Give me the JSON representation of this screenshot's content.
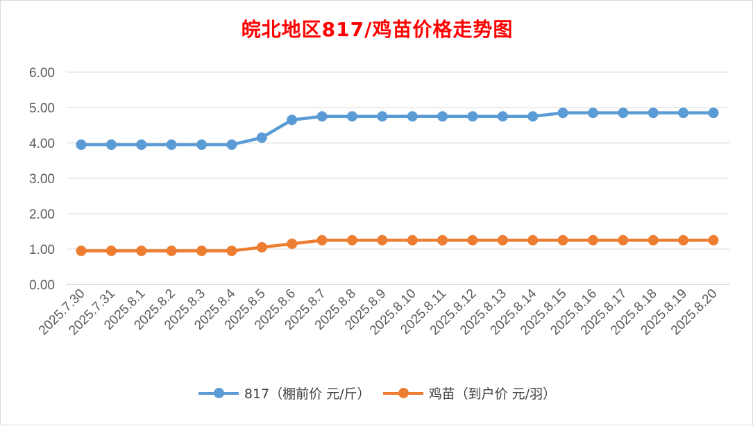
{
  "chart_data": {
    "type": "line",
    "title": "皖北地区817/鸡苗价格走势图",
    "categories": [
      "2025.7.30",
      "2025.7.31",
      "2025.8.1",
      "2025.8.2",
      "2025.8.3",
      "2025.8.4",
      "2025.8.5",
      "2025.8.6",
      "2025.8.7",
      "2025.8.8",
      "2025.8.9",
      "2025.8.10",
      "2025.8.11",
      "2025.8.12",
      "2025.8.13",
      "2025.8.14",
      "2025.8.15",
      "2025.8.16",
      "2025.8.17",
      "2025.8.18",
      "2025.8.19",
      "2025.8.20"
    ],
    "y_ticks": [
      "0.00",
      "1.00",
      "2.00",
      "3.00",
      "4.00",
      "5.00",
      "6.00"
    ],
    "ylim": [
      0,
      6
    ],
    "grid": true,
    "legend_position": "bottom",
    "series": [
      {
        "name": "817（棚前价 元/斤）",
        "color": "#5b9bd5",
        "values": [
          3.95,
          3.95,
          3.95,
          3.95,
          3.95,
          3.95,
          4.15,
          4.65,
          4.75,
          4.75,
          4.75,
          4.75,
          4.75,
          4.75,
          4.75,
          4.75,
          4.85,
          4.85,
          4.85,
          4.85,
          4.85,
          4.85
        ]
      },
      {
        "name": "鸡苗（到户价 元/羽）",
        "color": "#ed7d31",
        "values": [
          0.95,
          0.95,
          0.95,
          0.95,
          0.95,
          0.95,
          1.05,
          1.15,
          1.25,
          1.25,
          1.25,
          1.25,
          1.25,
          1.25,
          1.25,
          1.25,
          1.25,
          1.25,
          1.25,
          1.25,
          1.25,
          1.25
        ]
      }
    ]
  }
}
